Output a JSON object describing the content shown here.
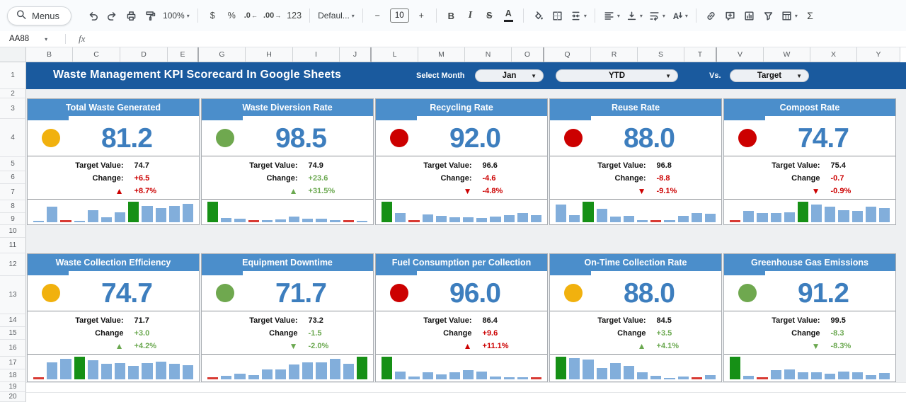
{
  "toolbar": {
    "menus": {
      "label": "Menus"
    },
    "items": [
      {
        "name": "undo-button",
        "icon": "undo"
      },
      {
        "name": "redo-button",
        "icon": "redo"
      },
      {
        "name": "print-button",
        "icon": "print"
      },
      {
        "name": "paint-format-button",
        "icon": "paint"
      },
      {
        "name": "zoom-dropdown",
        "label": "100%",
        "caret": true
      },
      {
        "sep": true
      },
      {
        "name": "format-currency-button",
        "label": "$"
      },
      {
        "name": "format-percent-button",
        "label": "%"
      },
      {
        "name": "decrease-decimal-button",
        "icon": "decdec"
      },
      {
        "name": "increase-decimal-button",
        "icon": "decinc"
      },
      {
        "name": "more-formats-button",
        "label": "123"
      },
      {
        "sep": true
      },
      {
        "name": "font-dropdown",
        "label": "Defaul...",
        "caret": true
      },
      {
        "sep": true
      },
      {
        "name": "decrease-font-size-button",
        "label": "−"
      },
      {
        "name": "font-size-input",
        "label": "10",
        "box": true
      },
      {
        "name": "increase-font-size-button",
        "label": "+"
      },
      {
        "sep": true
      },
      {
        "name": "bold-button",
        "label": "B"
      },
      {
        "name": "italic-button",
        "label": "I"
      },
      {
        "name": "strikethrough-button",
        "label": "S"
      },
      {
        "name": "text-color-button",
        "label": "A"
      },
      {
        "sep": true
      },
      {
        "name": "fill-color-button",
        "icon": "fill"
      },
      {
        "name": "borders-button",
        "icon": "borders"
      },
      {
        "name": "merge-cells-button",
        "icon": "merge",
        "caret": true
      },
      {
        "sep": true
      },
      {
        "name": "horizontal-align-button",
        "icon": "halign",
        "caret": true
      },
      {
        "name": "vertical-align-button",
        "icon": "valign",
        "caret": true
      },
      {
        "name": "text-wrap-button",
        "icon": "wrap",
        "caret": true
      },
      {
        "name": "text-rotation-button",
        "icon": "rotate",
        "caret": true
      },
      {
        "sep": true
      },
      {
        "name": "insert-link-button",
        "icon": "link"
      },
      {
        "name": "insert-comment-button",
        "icon": "comment"
      },
      {
        "name": "insert-chart-button",
        "icon": "chart"
      },
      {
        "name": "create-filter-button",
        "icon": "filter"
      },
      {
        "name": "table-views-button",
        "icon": "tableviews",
        "caret": true
      },
      {
        "name": "functions-button",
        "label": "Σ"
      }
    ]
  },
  "formula_bar": {
    "cell_reference": "AA88",
    "fx_label": "fx"
  },
  "grid": {
    "columns": [
      "B",
      "C",
      "D",
      "E",
      "G",
      "H",
      "I",
      "J",
      "L",
      "M",
      "N",
      "O",
      "Q",
      "R",
      "S",
      "T",
      "V",
      "W",
      "X",
      "Y"
    ],
    "rows": [
      "1",
      "2",
      "3",
      "4",
      "5",
      "6",
      "7",
      "8",
      "9",
      "10",
      "11",
      "12",
      "13",
      "14",
      "15",
      "16",
      "17",
      "18",
      "19",
      "20"
    ]
  },
  "banner": {
    "title": "Waste Management KPI Scorecard In Google Sheets",
    "select_month_label": "Select Month",
    "month_value": "Jan",
    "period_value": "YTD",
    "vs_label": "Vs.",
    "compare_value": "Target"
  },
  "cards": [
    {
      "title": "Total Waste Generated",
      "value": "81.2",
      "dot": "yellow",
      "target_label": "Target Value:",
      "target_value": "74.7",
      "change_label": "Change:",
      "change_value": "+6.5",
      "change_color": "red",
      "trend": "up",
      "trend_color": "red",
      "change_percent": "+8.7%",
      "spark": {
        "heights": [
          7,
          75,
          4,
          7,
          60,
          25,
          48,
          100,
          80,
          70,
          80,
          88
        ],
        "colors": [
          "b",
          "b",
          "r",
          "b",
          "b",
          "b",
          "b",
          "g",
          "b",
          "b",
          "b",
          "b"
        ]
      }
    },
    {
      "title": "Waste Diversion Rate",
      "value": "98.5",
      "dot": "green",
      "target_label": "Target Value:",
      "target_value": "74.9",
      "change_label": "Change:",
      "change_value": "+23.6",
      "change_color": "green",
      "trend": "up",
      "trend_color": "green",
      "change_percent": "+31.5%",
      "spark": {
        "heights": [
          100,
          20,
          16,
          4,
          9,
          13,
          26,
          16,
          19,
          12,
          4,
          8
        ],
        "colors": [
          "g",
          "b",
          "b",
          "r",
          "b",
          "b",
          "b",
          "b",
          "b",
          "b",
          "r",
          "b"
        ]
      }
    },
    {
      "title": "Recycling Rate",
      "value": "92.0",
      "dot": "red",
      "target_label": "Target Value:",
      "target_value": "96.6",
      "change_label": "Change:",
      "change_value": "-4.6",
      "change_color": "red",
      "trend": "down",
      "trend_color": "red",
      "change_percent": "-4.8%",
      "spark": {
        "heights": [
          100,
          45,
          4,
          38,
          30,
          25,
          25,
          20,
          28,
          33,
          45,
          35
        ],
        "colors": [
          "g",
          "b",
          "r",
          "b",
          "b",
          "b",
          "b",
          "b",
          "b",
          "b",
          "b",
          "b"
        ]
      }
    },
    {
      "title": "Reuse Rate",
      "value": "88.0",
      "dot": "red",
      "target_label": "Target Value:",
      "target_value": "96.8",
      "change_label": "Change:",
      "change_value": "-8.8",
      "change_color": "red",
      "trend": "down",
      "trend_color": "red",
      "change_percent": "-9.1%",
      "spark": {
        "heights": [
          85,
          35,
          100,
          65,
          28,
          32,
          10,
          4,
          10,
          30,
          45,
          42
        ],
        "colors": [
          "b",
          "b",
          "g",
          "b",
          "b",
          "b",
          "b",
          "r",
          "b",
          "b",
          "b",
          "b"
        ]
      }
    },
    {
      "title": "Compost Rate",
      "value": "74.7",
      "dot": "red",
      "target_label": "Target Value:",
      "target_value": "75.4",
      "change_label": "Change",
      "change_value": "-0.7",
      "change_color": "red",
      "trend": "down",
      "trend_color": "red",
      "change_percent": "-0.9%",
      "spark": {
        "heights": [
          4,
          55,
          45,
          45,
          50,
          100,
          85,
          75,
          60,
          55,
          75,
          70
        ],
        "colors": [
          "r",
          "b",
          "b",
          "b",
          "b",
          "g",
          "b",
          "b",
          "b",
          "b",
          "b",
          "b"
        ]
      }
    },
    {
      "title": "Waste Collection Efficiency",
      "value": "74.7",
      "dot": "yellow",
      "target_label": "Target Value:",
      "target_value": "71.7",
      "change_label": "Change",
      "change_value": "+3.0",
      "change_color": "green",
      "trend": "up",
      "trend_color": "green",
      "change_percent": "+4.2%",
      "spark": {
        "heights": [
          5,
          75,
          90,
          100,
          85,
          70,
          72,
          60,
          72,
          78,
          68,
          62
        ],
        "colors": [
          "r",
          "b",
          "b",
          "g",
          "b",
          "b",
          "b",
          "b",
          "b",
          "b",
          "b",
          "b"
        ]
      }
    },
    {
      "title": "Equipment Downtime",
      "value": "71.7",
      "dot": "green",
      "target_label": "Target Value:",
      "target_value": "73.2",
      "change_label": "Change",
      "change_value": "-1.5",
      "change_color": "green",
      "trend": "down",
      "trend_color": "green",
      "change_percent": "-2.0%",
      "spark": {
        "heights": [
          5,
          15,
          25,
          20,
          45,
          45,
          65,
          75,
          75,
          90,
          70,
          100
        ],
        "colors": [
          "r",
          "b",
          "b",
          "b",
          "b",
          "b",
          "b",
          "b",
          "b",
          "b",
          "b",
          "g"
        ]
      }
    },
    {
      "title": "Fuel Consumption per Collection",
      "value": "96.0",
      "dot": "red",
      "target_label": "Target Value:",
      "target_value": "86.4",
      "change_label": "Change",
      "change_value": "+9.6",
      "change_color": "red",
      "trend": "up",
      "trend_color": "red",
      "change_percent": "+11.1%",
      "spark": {
        "heights": [
          100,
          35,
          12,
          30,
          22,
          32,
          42,
          33,
          12,
          8,
          10,
          5
        ],
        "colors": [
          "g",
          "b",
          "b",
          "b",
          "b",
          "b",
          "b",
          "b",
          "b",
          "b",
          "b",
          "r"
        ]
      }
    },
    {
      "title": "On-Time Collection Rate",
      "value": "88.0",
      "dot": "yellow",
      "target_label": "Target Value:",
      "target_value": "84.5",
      "change_label": "Change",
      "change_value": "+3.5",
      "change_color": "green",
      "trend": "up",
      "trend_color": "green",
      "change_percent": "+4.1%",
      "spark": {
        "heights": [
          100,
          95,
          88,
          50,
          72,
          58,
          30,
          15,
          6,
          12,
          5,
          18
        ],
        "colors": [
          "g",
          "b",
          "b",
          "b",
          "b",
          "b",
          "b",
          "b",
          "b",
          "b",
          "r",
          "b"
        ]
      }
    },
    {
      "title": "Greenhouse Gas Emissions",
      "value": "91.2",
      "dot": "green",
      "target_label": "Target Value:",
      "target_value": "99.5",
      "change_label": "Change",
      "change_value": "-8.3",
      "change_color": "green",
      "trend": "down",
      "trend_color": "green",
      "change_percent": "-8.3%",
      "spark": {
        "heights": [
          100,
          15,
          5,
          40,
          45,
          30,
          32,
          25,
          35,
          30,
          18,
          28
        ],
        "colors": [
          "g",
          "b",
          "r",
          "b",
          "b",
          "b",
          "b",
          "b",
          "b",
          "b",
          "b",
          "b"
        ]
      }
    }
  ],
  "colors": {
    "banner_blue": "#1a5a9e",
    "card_header_blue": "#4b8ecb",
    "kpi_value_blue": "#3d7ebe",
    "spark_blue": "#82aedb",
    "spark_green": "#169016",
    "spark_red": "#d83a33",
    "negative_red": "#cc0000",
    "positive_green": "#6aa84f",
    "dot_yellow": "#f1b10e",
    "dot_green": "#6fa84f",
    "dot_red": "#cc0000"
  }
}
